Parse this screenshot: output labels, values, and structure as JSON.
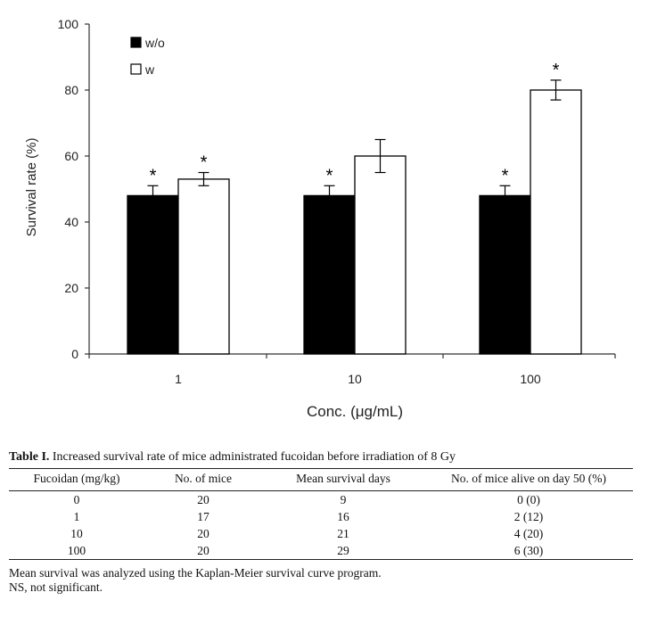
{
  "chart_data": {
    "type": "bar",
    "categories": [
      "1",
      "10",
      "100"
    ],
    "series": [
      {
        "name": "w/o",
        "values": [
          48,
          48,
          48
        ],
        "errors": [
          3,
          3,
          3
        ],
        "significance": [
          "*",
          "*",
          "*"
        ],
        "fill": "#000000"
      },
      {
        "name": "w",
        "values": [
          53,
          60,
          80
        ],
        "errors": [
          2,
          5,
          3
        ],
        "significance": [
          "*",
          "",
          "*"
        ],
        "fill": "#ffffff"
      }
    ],
    "title": "",
    "xlabel": "Conc. (μg/mL)",
    "ylabel": "Survival rate (%)",
    "ylim": [
      0,
      100
    ],
    "yticks": [
      0,
      20,
      40,
      60,
      80,
      100
    ],
    "legend_position": "top-left"
  },
  "table": {
    "label": "Table I.",
    "caption": "Increased survival rate of mice administrated fucoidan before irradiation of 8 Gy",
    "headers": [
      "Fucoidan (mg/kg)",
      "No. of mice",
      "Mean survival days",
      "No. of mice alive on day 50 (%)"
    ],
    "rows": [
      [
        "0",
        "20",
        "9",
        "0 (0)"
      ],
      [
        "1",
        "17",
        "16",
        "2 (12)"
      ],
      [
        "10",
        "20",
        "21",
        "4 (20)"
      ],
      [
        "100",
        "20",
        "29",
        "6 (30)"
      ]
    ],
    "notes": [
      "Mean survival was analyzed using the Kaplan-Meier survival curve program.",
      "NS, not significant."
    ]
  }
}
